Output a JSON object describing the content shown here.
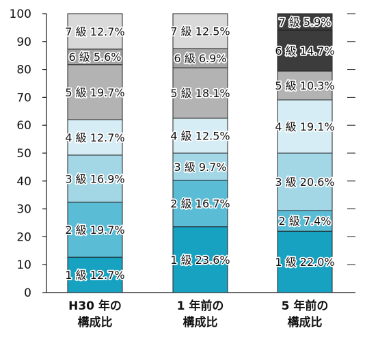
{
  "chart_data": {
    "type": "bar",
    "stacked": true,
    "ylim": [
      0,
      100
    ],
    "yticks": [
      "0",
      "10",
      "20",
      "30",
      "40",
      "50",
      "60",
      "70",
      "80",
      "90",
      "100"
    ],
    "categories": [
      [
        "H30 年の",
        "構成比"
      ],
      [
        "1 年前の",
        "構成比"
      ],
      [
        "5 年前の",
        "構成比"
      ]
    ],
    "series": [
      {
        "name": "1級",
        "color": "#17a2c2",
        "values": [
          12.7,
          23.6,
          22.0
        ],
        "labels": [
          "1 級 12.7%",
          "1 級 23.6%",
          "1 級 22.0%"
        ]
      },
      {
        "name": "2級",
        "color": "#5bbcd6",
        "values": [
          19.7,
          16.7,
          7.4
        ],
        "labels": [
          "2 級 19.7%",
          "2 級 16.7%",
          "2 級 7.4%"
        ]
      },
      {
        "name": "3級",
        "color": "#a3d7e6",
        "values": [
          16.9,
          9.7,
          20.6
        ],
        "labels": [
          "3 級 16.9%",
          "3 級 9.7%",
          "3 級 20.6%"
        ]
      },
      {
        "name": "4級",
        "color": "#d6edf5",
        "values": [
          12.7,
          12.5,
          19.1
        ],
        "labels": [
          "4 級 12.7%",
          "4 級 12.5%",
          "4 級 19.1%"
        ]
      },
      {
        "name": "5級",
        "color": "#b3b3b3",
        "values": [
          19.7,
          18.1,
          10.3
        ],
        "labels": [
          "5 級 19.7%",
          "5 級 18.1%",
          "5 級 10.3%"
        ]
      },
      {
        "name": "6級",
        "color": "#a6a6a6",
        "values": [
          5.6,
          6.9,
          14.7
        ],
        "labels": [
          "6 級 5.6%",
          "6 級 6.9%",
          "6 級 14.7%"
        ]
      },
      {
        "name": "7級",
        "color": "#d9d9d9",
        "values": [
          12.7,
          12.5,
          5.9
        ],
        "labels": [
          "7 級 12.7%",
          "7 級 12.5%",
          "7 級 5.9%"
        ]
      }
    ],
    "series_colors_override": {
      "6級": [
        "#a6a6a6",
        "#a6a6a6",
        "#3c3c3c"
      ],
      "7級": [
        "#d9d9d9",
        "#d9d9d9",
        "#3c3c3c"
      ]
    },
    "grid": false,
    "legend": "none"
  }
}
